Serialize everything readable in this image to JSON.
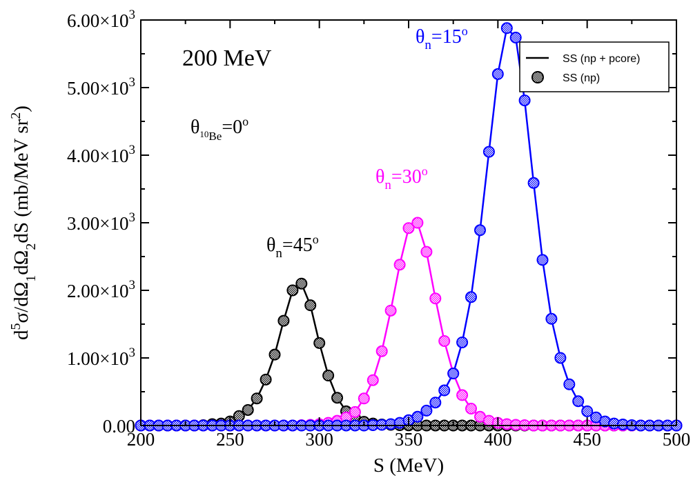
{
  "chart_data": {
    "type": "line",
    "xlabel": "S (MeV)",
    "ylabel": {
      "main": "d",
      "sup5": "5",
      "mid1": "σ/dΩ",
      "sub1": "1",
      "mid2": "dΩ",
      "sub2": "2",
      "mid3": "dS  (mb/MeV sr",
      "sup2": "2",
      "end": ")"
    },
    "xlim": [
      200,
      500
    ],
    "ylim": [
      0,
      6000
    ],
    "xticks": [
      "200",
      "250",
      "300",
      "350",
      "400",
      "450",
      "500"
    ],
    "yticks": [
      {
        "mant": "0.00",
        "times": "",
        "exp": ""
      },
      {
        "mant": "1.00",
        "times": "×10",
        "exp": "3"
      },
      {
        "mant": "2.00",
        "times": "×10",
        "exp": "3"
      },
      {
        "mant": "3.00",
        "times": "×10",
        "exp": "3"
      },
      {
        "mant": "4.00",
        "times": "×10",
        "exp": "3"
      },
      {
        "mant": "5.00",
        "times": "×10",
        "exp": "3"
      },
      {
        "mant": "6.00",
        "times": "×10",
        "exp": "3"
      }
    ],
    "grid": false,
    "legend_position": "top-right",
    "legend": [
      {
        "label": "SS (np + pcore)",
        "style": "line"
      },
      {
        "label": "SS (np)",
        "style": "marker"
      }
    ],
    "annotations": {
      "energy": "200 MeV",
      "theta_be": {
        "theta": "θ",
        "sub": "10",
        "sub2": "Be",
        "eq": "=0",
        "sup": "o"
      },
      "curve45": {
        "theta": "θ",
        "sub": "n",
        "eq": "=45",
        "sup": "o",
        "color": "#000000"
      },
      "curve30": {
        "theta": "θ",
        "sub": "n",
        "eq": "=30",
        "sup": "o",
        "color": "#ff00ff"
      },
      "curve15": {
        "theta": "θ",
        "sub": "n",
        "eq": "=15",
        "sup": "o",
        "color": "#0000ff"
      }
    },
    "series": [
      {
        "color": "#000000",
        "x": [
          200,
          205,
          210,
          215,
          220,
          225,
          230,
          235,
          240,
          245,
          250,
          255,
          260,
          265,
          270,
          275,
          280,
          285,
          290,
          295,
          300,
          305,
          310,
          315,
          320,
          325,
          330,
          335,
          340,
          345,
          350,
          355,
          360,
          365,
          370,
          375,
          380,
          385,
          390,
          395,
          400,
          405,
          410,
          415,
          420,
          425,
          430,
          435,
          440,
          445,
          450,
          455,
          460,
          465,
          470,
          475,
          480,
          485,
          490,
          495,
          500
        ],
        "y": [
          0,
          0,
          0,
          0,
          0,
          0,
          0,
          5,
          20,
          30,
          60,
          140,
          230,
          400,
          680,
          1050,
          1550,
          2000,
          2100,
          1780,
          1220,
          740,
          410,
          210,
          110,
          55,
          30,
          15,
          10,
          5,
          2,
          0,
          0,
          0,
          0,
          0,
          0,
          0,
          0,
          0,
          0,
          0,
          0,
          0,
          0,
          0,
          0,
          0,
          0,
          0,
          0,
          0,
          0,
          0,
          0,
          0,
          0,
          0,
          0,
          0,
          0
        ]
      },
      {
        "color": "#ff00ff",
        "x": [
          200,
          205,
          210,
          215,
          220,
          225,
          230,
          235,
          240,
          245,
          250,
          255,
          260,
          265,
          270,
          275,
          280,
          285,
          290,
          295,
          300,
          305,
          310,
          315,
          320,
          325,
          330,
          335,
          340,
          345,
          350,
          355,
          360,
          365,
          370,
          375,
          380,
          385,
          390,
          395,
          400,
          405,
          410,
          415,
          420,
          425,
          430,
          435,
          440,
          445,
          450,
          455,
          460,
          465,
          470,
          475,
          480,
          485,
          490,
          495,
          500
        ],
        "y": [
          0,
          0,
          0,
          0,
          0,
          0,
          0,
          0,
          0,
          0,
          0,
          0,
          0,
          0,
          0,
          0,
          0,
          0,
          5,
          10,
          20,
          40,
          70,
          120,
          200,
          400,
          670,
          1100,
          1700,
          2380,
          2920,
          3000,
          2570,
          1880,
          1250,
          770,
          450,
          250,
          130,
          70,
          40,
          20,
          10,
          5,
          0,
          0,
          0,
          0,
          0,
          0,
          0,
          0,
          0,
          0,
          0,
          0,
          0,
          0,
          0,
          0,
          0
        ]
      },
      {
        "color": "#0000ff",
        "x": [
          200,
          205,
          210,
          215,
          220,
          225,
          230,
          235,
          240,
          245,
          250,
          255,
          260,
          265,
          270,
          275,
          280,
          285,
          290,
          295,
          300,
          305,
          310,
          315,
          320,
          325,
          330,
          335,
          340,
          345,
          350,
          355,
          360,
          365,
          370,
          375,
          380,
          385,
          390,
          395,
          400,
          405,
          410,
          415,
          420,
          425,
          430,
          435,
          440,
          445,
          450,
          455,
          460,
          465,
          470,
          475,
          480,
          485,
          490,
          495,
          500
        ],
        "y": [
          0,
          0,
          0,
          0,
          0,
          0,
          0,
          0,
          0,
          0,
          0,
          0,
          0,
          0,
          0,
          0,
          0,
          0,
          0,
          0,
          0,
          0,
          0,
          0,
          0,
          0,
          5,
          10,
          20,
          40,
          80,
          130,
          220,
          340,
          520,
          770,
          1230,
          1900,
          2890,
          4050,
          5200,
          5880,
          5740,
          4810,
          3590,
          2450,
          1580,
          1000,
          610,
          360,
          210,
          120,
          60,
          30,
          15,
          5,
          0,
          0,
          0,
          0,
          0
        ]
      }
    ]
  }
}
